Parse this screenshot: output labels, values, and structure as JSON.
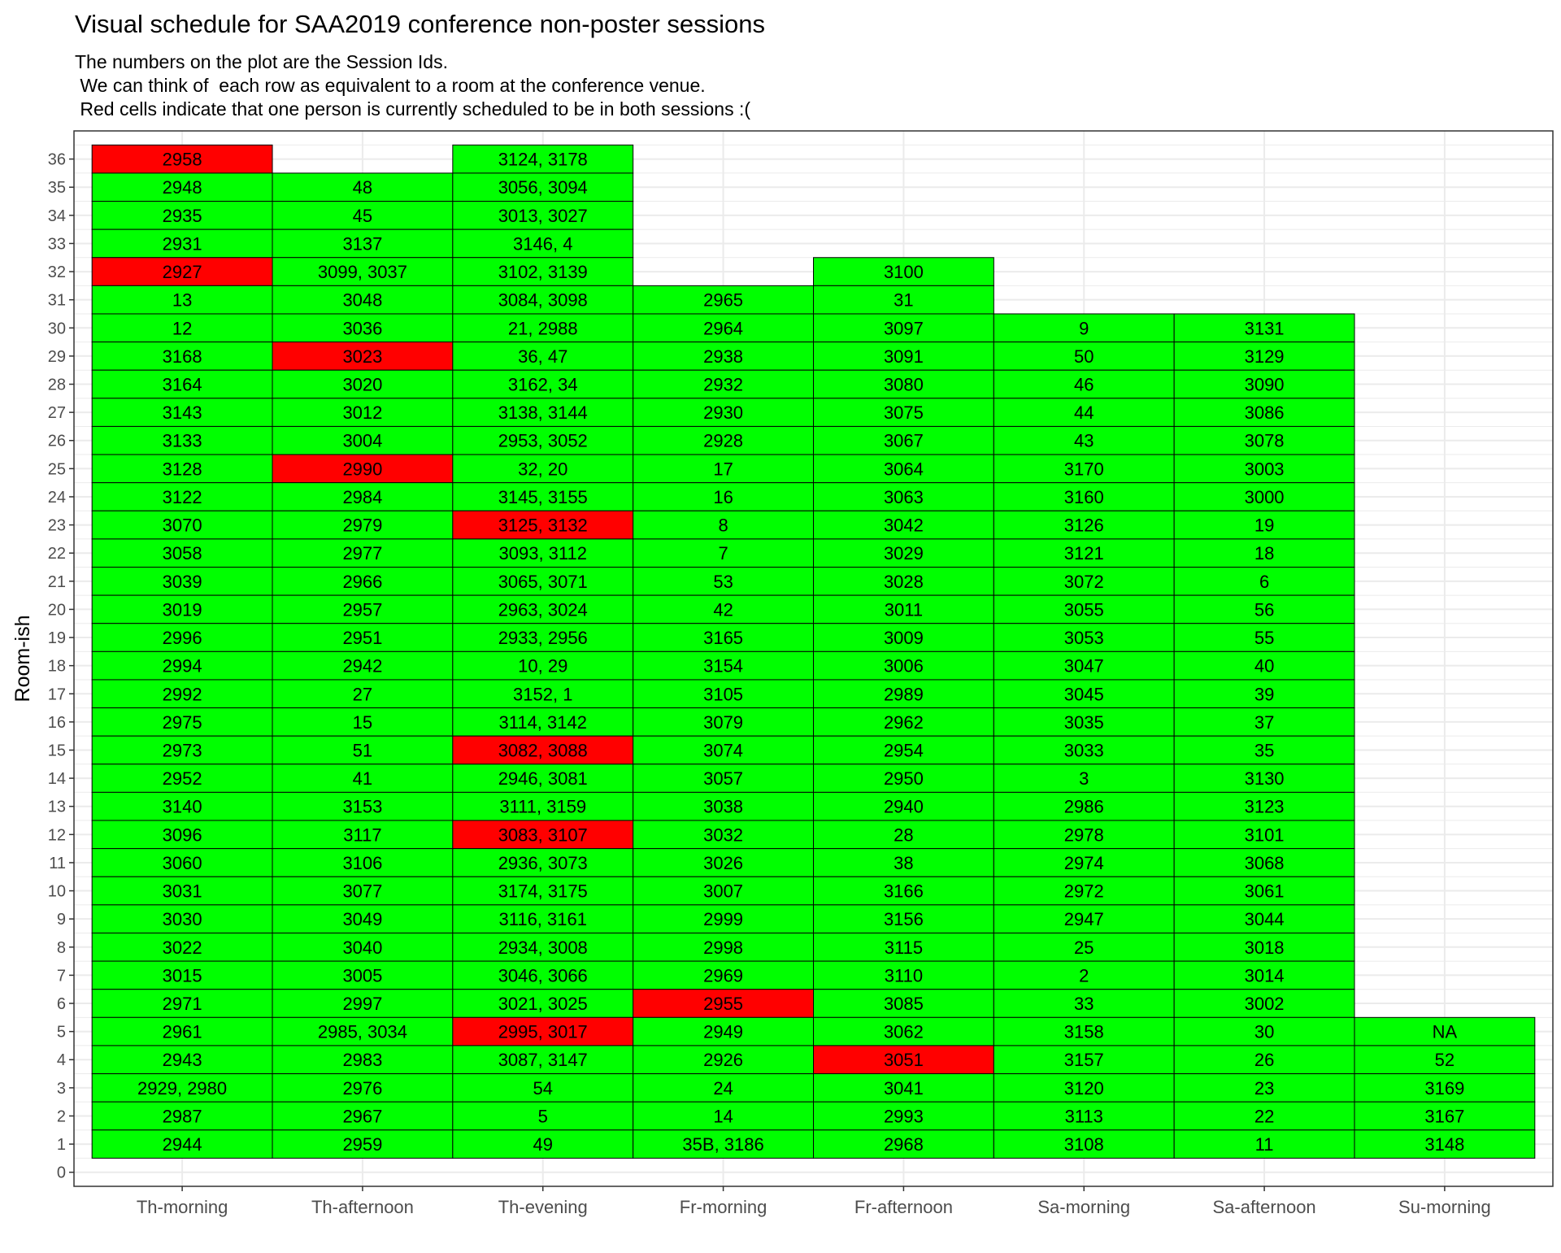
{
  "chart_data": {
    "type": "heatmap",
    "title": "Visual schedule for SAA2019 conference non-poster sessions",
    "subtitle": [
      "The numbers on the plot are the Session Ids.",
      " We can think of  each row as equivalent to a room at the conference venue.",
      " Red cells indicate that one person is currently scheduled to be in both sessions :("
    ],
    "xlabel": "",
    "ylabel": "Room-ish",
    "categories": [
      "Th-morning",
      "Th-afternoon",
      "Th-evening",
      "Fr-morning",
      "Fr-afternoon",
      "Sa-morning",
      "Sa-afternoon",
      "Su-morning"
    ],
    "y_ticks": [
      0,
      1,
      2,
      3,
      4,
      5,
      6,
      7,
      8,
      9,
      10,
      11,
      12,
      13,
      14,
      15,
      16,
      17,
      18,
      19,
      20,
      21,
      22,
      23,
      24,
      25,
      26,
      27,
      28,
      29,
      30,
      31,
      32,
      33,
      34,
      35,
      36
    ],
    "ylim": [
      -0.5,
      37.0
    ],
    "grid": true,
    "colors": {
      "ok": "#00ff00",
      "conflict": "#ff0000",
      "border": "#000000",
      "grid": "#ebebeb",
      "panel_border": "#333333",
      "text": "#000000",
      "axis_text": "#4d4d4d"
    },
    "series": [
      {
        "slot": "Th-morning",
        "cells": [
          {
            "room": 36,
            "ids": "2958",
            "conflict": true
          },
          {
            "room": 35,
            "ids": "2948"
          },
          {
            "room": 34,
            "ids": "2935"
          },
          {
            "room": 33,
            "ids": "2931"
          },
          {
            "room": 32,
            "ids": "2927",
            "conflict": true
          },
          {
            "room": 31,
            "ids": "13"
          },
          {
            "room": 30,
            "ids": "12"
          },
          {
            "room": 29,
            "ids": "3168"
          },
          {
            "room": 28,
            "ids": "3164"
          },
          {
            "room": 27,
            "ids": "3143"
          },
          {
            "room": 26,
            "ids": "3133"
          },
          {
            "room": 25,
            "ids": "3128"
          },
          {
            "room": 24,
            "ids": "3122"
          },
          {
            "room": 23,
            "ids": "3070"
          },
          {
            "room": 22,
            "ids": "3058"
          },
          {
            "room": 21,
            "ids": "3039"
          },
          {
            "room": 20,
            "ids": "3019"
          },
          {
            "room": 19,
            "ids": "2996"
          },
          {
            "room": 18,
            "ids": "2994"
          },
          {
            "room": 17,
            "ids": "2992"
          },
          {
            "room": 16,
            "ids": "2975"
          },
          {
            "room": 15,
            "ids": "2973"
          },
          {
            "room": 14,
            "ids": "2952"
          },
          {
            "room": 13,
            "ids": "3140"
          },
          {
            "room": 12,
            "ids": "3096"
          },
          {
            "room": 11,
            "ids": "3060"
          },
          {
            "room": 10,
            "ids": "3031"
          },
          {
            "room": 9,
            "ids": "3030"
          },
          {
            "room": 8,
            "ids": "3022"
          },
          {
            "room": 7,
            "ids": "3015"
          },
          {
            "room": 6,
            "ids": "2971"
          },
          {
            "room": 5,
            "ids": "2961"
          },
          {
            "room": 4,
            "ids": "2943"
          },
          {
            "room": 3,
            "ids": "2929, 2980"
          },
          {
            "room": 2,
            "ids": "2987"
          },
          {
            "room": 1,
            "ids": "2944"
          }
        ]
      },
      {
        "slot": "Th-afternoon",
        "cells": [
          {
            "room": 35,
            "ids": "48"
          },
          {
            "room": 34,
            "ids": "45"
          },
          {
            "room": 33,
            "ids": "3137"
          },
          {
            "room": 32,
            "ids": "3099, 3037"
          },
          {
            "room": 31,
            "ids": "3048"
          },
          {
            "room": 30,
            "ids": "3036"
          },
          {
            "room": 29,
            "ids": "3023",
            "conflict": true
          },
          {
            "room": 28,
            "ids": "3020"
          },
          {
            "room": 27,
            "ids": "3012"
          },
          {
            "room": 26,
            "ids": "3004"
          },
          {
            "room": 25,
            "ids": "2990",
            "conflict": true
          },
          {
            "room": 24,
            "ids": "2984"
          },
          {
            "room": 23,
            "ids": "2979"
          },
          {
            "room": 22,
            "ids": "2977"
          },
          {
            "room": 21,
            "ids": "2966"
          },
          {
            "room": 20,
            "ids": "2957"
          },
          {
            "room": 19,
            "ids": "2951"
          },
          {
            "room": 18,
            "ids": "2942"
          },
          {
            "room": 17,
            "ids": "27"
          },
          {
            "room": 16,
            "ids": "15"
          },
          {
            "room": 15,
            "ids": "51"
          },
          {
            "room": 14,
            "ids": "41"
          },
          {
            "room": 13,
            "ids": "3153"
          },
          {
            "room": 12,
            "ids": "3117"
          },
          {
            "room": 11,
            "ids": "3106"
          },
          {
            "room": 10,
            "ids": "3077"
          },
          {
            "room": 9,
            "ids": "3049"
          },
          {
            "room": 8,
            "ids": "3040"
          },
          {
            "room": 7,
            "ids": "3005"
          },
          {
            "room": 6,
            "ids": "2997"
          },
          {
            "room": 5,
            "ids": "2985, 3034"
          },
          {
            "room": 4,
            "ids": "2983"
          },
          {
            "room": 3,
            "ids": "2976"
          },
          {
            "room": 2,
            "ids": "2967"
          },
          {
            "room": 1,
            "ids": "2959"
          }
        ]
      },
      {
        "slot": "Th-evening",
        "cells": [
          {
            "room": 36,
            "ids": "3124, 3178"
          },
          {
            "room": 35,
            "ids": "3056, 3094"
          },
          {
            "room": 34,
            "ids": "3013, 3027"
          },
          {
            "room": 33,
            "ids": "3146, 4"
          },
          {
            "room": 32,
            "ids": "3102, 3139"
          },
          {
            "room": 31,
            "ids": "3084, 3098"
          },
          {
            "room": 30,
            "ids": "21, 2988"
          },
          {
            "room": 29,
            "ids": "36, 47"
          },
          {
            "room": 28,
            "ids": "3162, 34"
          },
          {
            "room": 27,
            "ids": "3138, 3144"
          },
          {
            "room": 26,
            "ids": "2953, 3052"
          },
          {
            "room": 25,
            "ids": "32, 20"
          },
          {
            "room": 24,
            "ids": "3145, 3155"
          },
          {
            "room": 23,
            "ids": "3125, 3132",
            "conflict": true
          },
          {
            "room": 22,
            "ids": "3093, 3112"
          },
          {
            "room": 21,
            "ids": "3065, 3071"
          },
          {
            "room": 20,
            "ids": "2963, 3024"
          },
          {
            "room": 19,
            "ids": "2933, 2956"
          },
          {
            "room": 18,
            "ids": "10, 29"
          },
          {
            "room": 17,
            "ids": "3152, 1"
          },
          {
            "room": 16,
            "ids": "3114, 3142"
          },
          {
            "room": 15,
            "ids": "3082, 3088",
            "conflict": true
          },
          {
            "room": 14,
            "ids": "2946, 3081"
          },
          {
            "room": 13,
            "ids": "3111, 3159"
          },
          {
            "room": 12,
            "ids": "3083, 3107",
            "conflict": true
          },
          {
            "room": 11,
            "ids": "2936, 3073"
          },
          {
            "room": 10,
            "ids": "3174, 3175"
          },
          {
            "room": 9,
            "ids": "3116, 3161"
          },
          {
            "room": 8,
            "ids": "2934, 3008"
          },
          {
            "room": 7,
            "ids": "3046, 3066"
          },
          {
            "room": 6,
            "ids": "3021, 3025"
          },
          {
            "room": 5,
            "ids": "2995, 3017",
            "conflict": true
          },
          {
            "room": 4,
            "ids": "3087, 3147"
          },
          {
            "room": 3,
            "ids": "54"
          },
          {
            "room": 2,
            "ids": "5"
          },
          {
            "room": 1,
            "ids": "49"
          }
        ]
      },
      {
        "slot": "Fr-morning",
        "cells": [
          {
            "room": 31,
            "ids": "2965"
          },
          {
            "room": 30,
            "ids": "2964"
          },
          {
            "room": 29,
            "ids": "2938"
          },
          {
            "room": 28,
            "ids": "2932"
          },
          {
            "room": 27,
            "ids": "2930"
          },
          {
            "room": 26,
            "ids": "2928"
          },
          {
            "room": 25,
            "ids": "17"
          },
          {
            "room": 24,
            "ids": "16"
          },
          {
            "room": 23,
            "ids": "8"
          },
          {
            "room": 22,
            "ids": "7"
          },
          {
            "room": 21,
            "ids": "53"
          },
          {
            "room": 20,
            "ids": "42"
          },
          {
            "room": 19,
            "ids": "3165"
          },
          {
            "room": 18,
            "ids": "3154"
          },
          {
            "room": 17,
            "ids": "3105"
          },
          {
            "room": 16,
            "ids": "3079"
          },
          {
            "room": 15,
            "ids": "3074"
          },
          {
            "room": 14,
            "ids": "3057"
          },
          {
            "room": 13,
            "ids": "3038"
          },
          {
            "room": 12,
            "ids": "3032"
          },
          {
            "room": 11,
            "ids": "3026"
          },
          {
            "room": 10,
            "ids": "3007"
          },
          {
            "room": 9,
            "ids": "2999"
          },
          {
            "room": 8,
            "ids": "2998"
          },
          {
            "room": 7,
            "ids": "2969"
          },
          {
            "room": 6,
            "ids": "2955",
            "conflict": true
          },
          {
            "room": 5,
            "ids": "2949"
          },
          {
            "room": 4,
            "ids": "2926"
          },
          {
            "room": 3,
            "ids": "24"
          },
          {
            "room": 2,
            "ids": "14"
          },
          {
            "room": 1,
            "ids": "35B, 3186"
          }
        ]
      },
      {
        "slot": "Fr-afternoon",
        "cells": [
          {
            "room": 32,
            "ids": "3100"
          },
          {
            "room": 31,
            "ids": "31"
          },
          {
            "room": 30,
            "ids": "3097"
          },
          {
            "room": 29,
            "ids": "3091"
          },
          {
            "room": 28,
            "ids": "3080"
          },
          {
            "room": 27,
            "ids": "3075"
          },
          {
            "room": 26,
            "ids": "3067"
          },
          {
            "room": 25,
            "ids": "3064"
          },
          {
            "room": 24,
            "ids": "3063"
          },
          {
            "room": 23,
            "ids": "3042"
          },
          {
            "room": 22,
            "ids": "3029"
          },
          {
            "room": 21,
            "ids": "3028"
          },
          {
            "room": 20,
            "ids": "3011"
          },
          {
            "room": 19,
            "ids": "3009"
          },
          {
            "room": 18,
            "ids": "3006"
          },
          {
            "room": 17,
            "ids": "2989"
          },
          {
            "room": 16,
            "ids": "2962"
          },
          {
            "room": 15,
            "ids": "2954"
          },
          {
            "room": 14,
            "ids": "2950"
          },
          {
            "room": 13,
            "ids": "2940"
          },
          {
            "room": 12,
            "ids": "28"
          },
          {
            "room": 11,
            "ids": "38"
          },
          {
            "room": 10,
            "ids": "3166"
          },
          {
            "room": 9,
            "ids": "3156"
          },
          {
            "room": 8,
            "ids": "3115"
          },
          {
            "room": 7,
            "ids": "3110"
          },
          {
            "room": 6,
            "ids": "3085"
          },
          {
            "room": 5,
            "ids": "3062"
          },
          {
            "room": 4,
            "ids": "3051",
            "conflict": true
          },
          {
            "room": 3,
            "ids": "3041"
          },
          {
            "room": 2,
            "ids": "2993"
          },
          {
            "room": 1,
            "ids": "2968"
          }
        ]
      },
      {
        "slot": "Sa-morning",
        "cells": [
          {
            "room": 30,
            "ids": "9"
          },
          {
            "room": 29,
            "ids": "50"
          },
          {
            "room": 28,
            "ids": "46"
          },
          {
            "room": 27,
            "ids": "44"
          },
          {
            "room": 26,
            "ids": "43"
          },
          {
            "room": 25,
            "ids": "3170"
          },
          {
            "room": 24,
            "ids": "3160"
          },
          {
            "room": 23,
            "ids": "3126"
          },
          {
            "room": 22,
            "ids": "3121"
          },
          {
            "room": 21,
            "ids": "3072"
          },
          {
            "room": 20,
            "ids": "3055"
          },
          {
            "room": 19,
            "ids": "3053"
          },
          {
            "room": 18,
            "ids": "3047"
          },
          {
            "room": 17,
            "ids": "3045"
          },
          {
            "room": 16,
            "ids": "3035"
          },
          {
            "room": 15,
            "ids": "3033"
          },
          {
            "room": 14,
            "ids": "3"
          },
          {
            "room": 13,
            "ids": "2986"
          },
          {
            "room": 12,
            "ids": "2978"
          },
          {
            "room": 11,
            "ids": "2974"
          },
          {
            "room": 10,
            "ids": "2972"
          },
          {
            "room": 9,
            "ids": "2947"
          },
          {
            "room": 8,
            "ids": "25"
          },
          {
            "room": 7,
            "ids": "2"
          },
          {
            "room": 6,
            "ids": "33"
          },
          {
            "room": 5,
            "ids": "3158"
          },
          {
            "room": 4,
            "ids": "3157"
          },
          {
            "room": 3,
            "ids": "3120"
          },
          {
            "room": 2,
            "ids": "3113"
          },
          {
            "room": 1,
            "ids": "3108"
          }
        ]
      },
      {
        "slot": "Sa-afternoon",
        "cells": [
          {
            "room": 30,
            "ids": "3131"
          },
          {
            "room": 29,
            "ids": "3129"
          },
          {
            "room": 28,
            "ids": "3090"
          },
          {
            "room": 27,
            "ids": "3086"
          },
          {
            "room": 26,
            "ids": "3078"
          },
          {
            "room": 25,
            "ids": "3003"
          },
          {
            "room": 24,
            "ids": "3000"
          },
          {
            "room": 23,
            "ids": "19"
          },
          {
            "room": 22,
            "ids": "18"
          },
          {
            "room": 21,
            "ids": "6"
          },
          {
            "room": 20,
            "ids": "56"
          },
          {
            "room": 19,
            "ids": "55"
          },
          {
            "room": 18,
            "ids": "40"
          },
          {
            "room": 17,
            "ids": "39"
          },
          {
            "room": 16,
            "ids": "37"
          },
          {
            "room": 15,
            "ids": "35"
          },
          {
            "room": 14,
            "ids": "3130"
          },
          {
            "room": 13,
            "ids": "3123"
          },
          {
            "room": 12,
            "ids": "3101"
          },
          {
            "room": 11,
            "ids": "3068"
          },
          {
            "room": 10,
            "ids": "3061"
          },
          {
            "room": 9,
            "ids": "3044"
          },
          {
            "room": 8,
            "ids": "3018"
          },
          {
            "room": 7,
            "ids": "3014"
          },
          {
            "room": 6,
            "ids": "3002"
          },
          {
            "room": 5,
            "ids": "30"
          },
          {
            "room": 4,
            "ids": "26"
          },
          {
            "room": 3,
            "ids": "23"
          },
          {
            "room": 2,
            "ids": "22"
          },
          {
            "room": 1,
            "ids": "11"
          }
        ]
      },
      {
        "slot": "Su-morning",
        "cells": [
          {
            "room": 5,
            "ids": "NA"
          },
          {
            "room": 4,
            "ids": "52"
          },
          {
            "room": 3,
            "ids": "3169"
          },
          {
            "room": 2,
            "ids": "3167"
          },
          {
            "room": 1,
            "ids": "3148"
          }
        ]
      }
    ]
  }
}
